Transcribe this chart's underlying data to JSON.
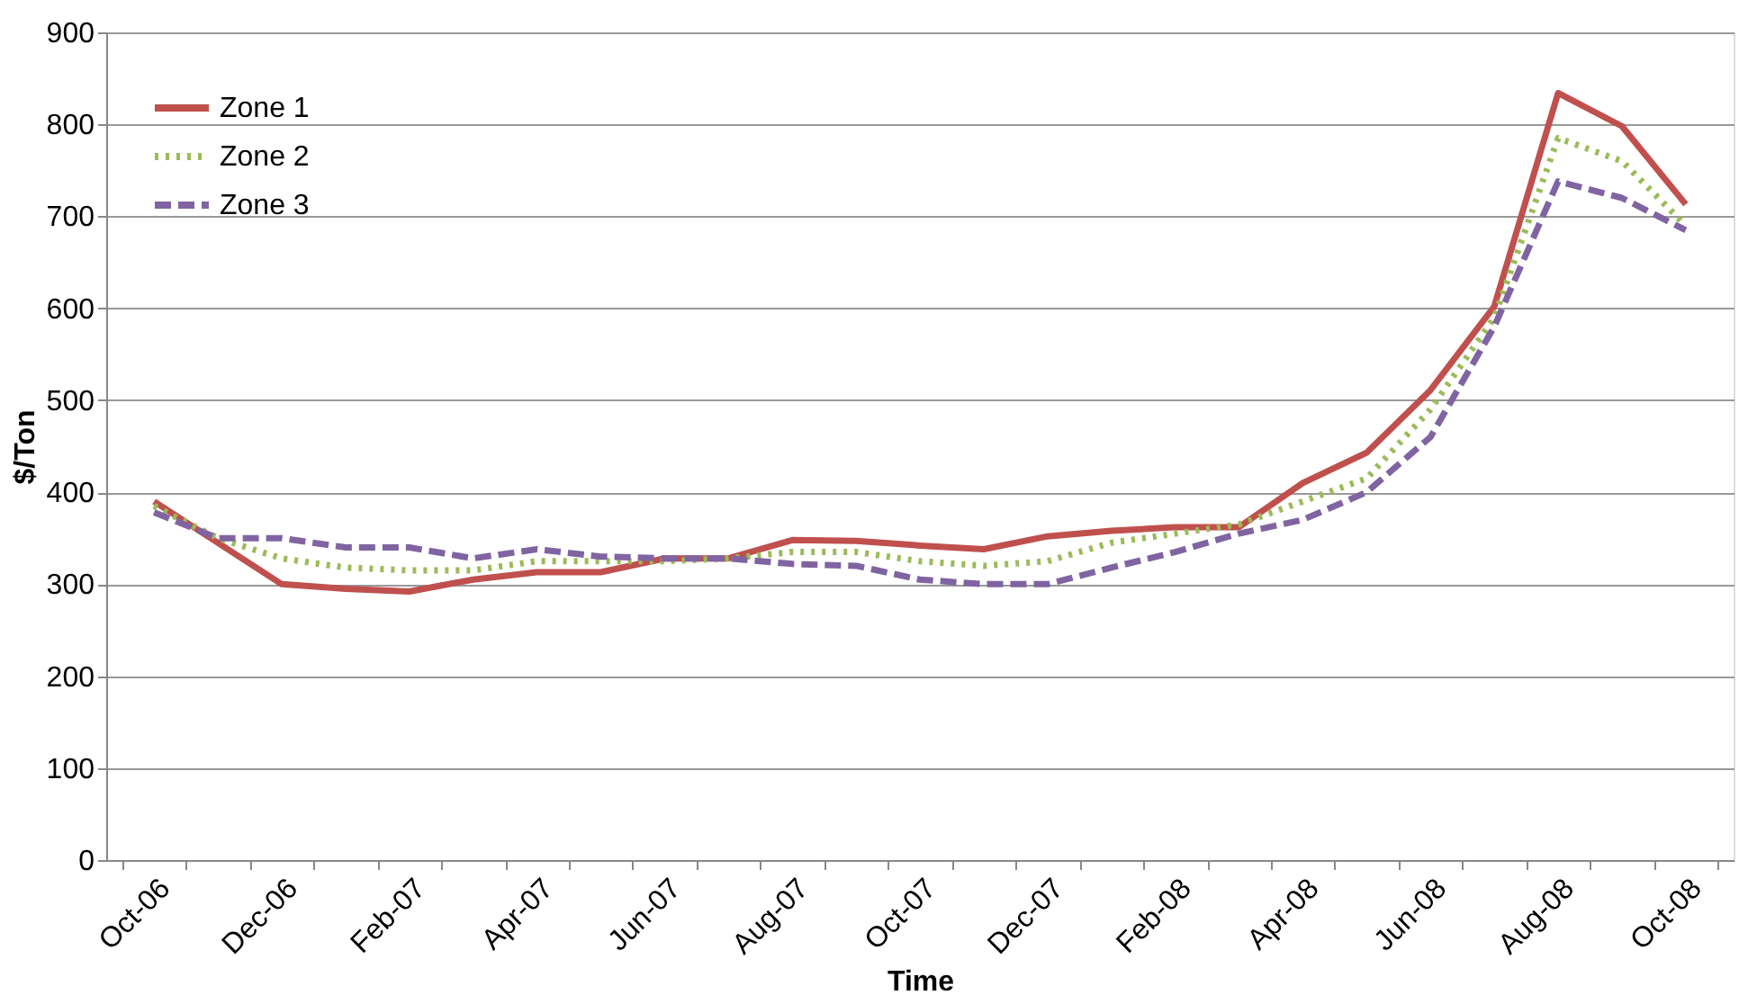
{
  "chart_data": {
    "type": "line",
    "xlabel": "Time",
    "ylabel": "$/Ton",
    "categories": [
      "Oct-06",
      null,
      "Dec-06",
      null,
      "Feb-07",
      null,
      "Apr-07",
      null,
      "Jun-07",
      null,
      "Aug-07",
      null,
      "Oct-07",
      null,
      "Dec-07",
      null,
      "Feb-08",
      null,
      "Apr-08",
      null,
      "Jun-08",
      null,
      "Aug-08",
      null,
      "Oct-08"
    ],
    "series": [
      {
        "name": "Zone 1",
        "color": "#c0504d",
        "line_style": "solid",
        "values": [
          390,
          345,
          300,
          295,
          292,
          305,
          313,
          313,
          328,
          328,
          348,
          347,
          342,
          338,
          352,
          358,
          362,
          362,
          410,
          443,
          511,
          602,
          834,
          798,
          713
        ]
      },
      {
        "name": "Zone 2",
        "color": "#9bbb59",
        "line_style": "dotted",
        "values": [
          385,
          350,
          328,
          318,
          315,
          315,
          325,
          325,
          325,
          328,
          335,
          335,
          325,
          320,
          325,
          345,
          355,
          365,
          390,
          415,
          490,
          590,
          785,
          760,
          690
        ]
      },
      {
        "name": "Zone 3",
        "color": "#8064a2",
        "line_style": "dashed",
        "values": [
          378,
          350,
          350,
          340,
          340,
          328,
          338,
          330,
          328,
          328,
          322,
          320,
          305,
          300,
          300,
          318,
          335,
          355,
          370,
          400,
          460,
          580,
          738,
          720,
          685
        ]
      }
    ],
    "ylim": [
      0,
      900
    ],
    "yticks": [
      0,
      100,
      200,
      300,
      400,
      500,
      600,
      700,
      800,
      900
    ],
    "grid": "y",
    "legend": "top left",
    "marker": "none"
  }
}
